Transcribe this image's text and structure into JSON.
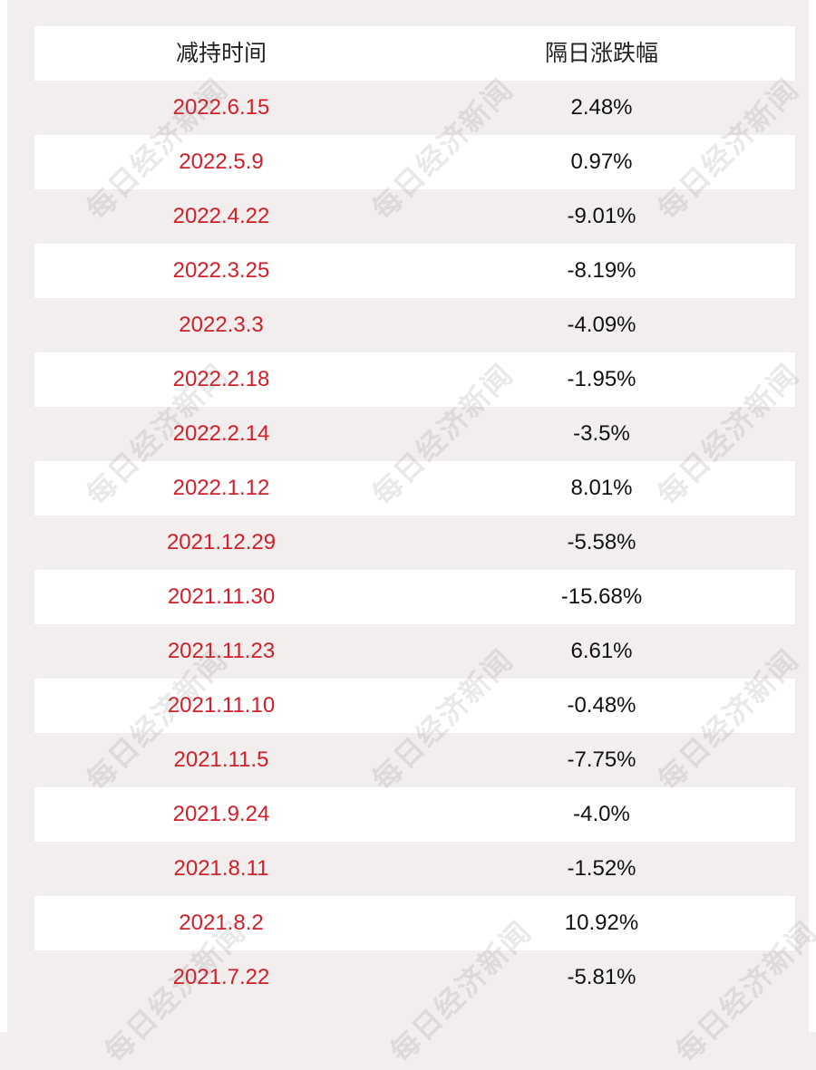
{
  "table": {
    "headers": {
      "date": "减持时间",
      "change": "隔日涨跌幅"
    },
    "rows": [
      {
        "date": "2022.6.15",
        "change": "2.48%"
      },
      {
        "date": "2022.5.9",
        "change": "0.97%"
      },
      {
        "date": "2022.4.22",
        "change": "-9.01%"
      },
      {
        "date": "2022.3.25",
        "change": "-8.19%"
      },
      {
        "date": "2022.3.3",
        "change": "-4.09%"
      },
      {
        "date": "2022.2.18",
        "change": "-1.95%"
      },
      {
        "date": "2022.2.14",
        "change": "-3.5%"
      },
      {
        "date": "2022.1.12",
        "change": "8.01%"
      },
      {
        "date": "2021.12.29",
        "change": "-5.58%"
      },
      {
        "date": "2021.11.30",
        "change": "-15.68%"
      },
      {
        "date": "2021.11.23",
        "change": "6.61%"
      },
      {
        "date": "2021.11.10",
        "change": "-0.48%"
      },
      {
        "date": "2021.11.5",
        "change": "-7.75%"
      },
      {
        "date": "2021.9.24",
        "change": "-4.0%"
      },
      {
        "date": "2021.8.11",
        "change": "-1.52%"
      },
      {
        "date": "2021.8.2",
        "change": "10.92%"
      },
      {
        "date": "2021.7.22",
        "change": "-5.81%"
      }
    ]
  },
  "watermark": "每日经济新闻",
  "colors": {
    "date_text": "#d0202a",
    "value_text": "#111111",
    "row_white": "#ffffff",
    "row_tint": "#f3eeee"
  }
}
